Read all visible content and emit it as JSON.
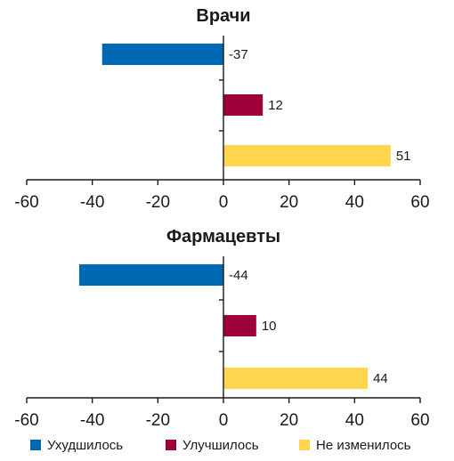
{
  "chart_data": [
    {
      "type": "bar",
      "orientation": "horizontal",
      "title": "Врачи",
      "categories": [
        "Ухудшилось",
        "Улучшилось",
        "Не изменилось"
      ],
      "values": [
        -37,
        12,
        51
      ],
      "value_labels": [
        "-37",
        "12",
        "51"
      ],
      "colors": [
        "#0069B4",
        "#9E0039",
        "#FFD64D"
      ],
      "xlim": [
        -60,
        60
      ],
      "xticks": [
        -60,
        -40,
        -20,
        0,
        20,
        40,
        60
      ],
      "xtick_labels": [
        "-60",
        "-40",
        "-20",
        "0",
        "20",
        "40",
        "60"
      ],
      "grid": false
    },
    {
      "type": "bar",
      "orientation": "horizontal",
      "title": "Фармацевты",
      "categories": [
        "Ухудшилось",
        "Улучшилось",
        "Не изменилось"
      ],
      "values": [
        -44,
        10,
        44
      ],
      "value_labels": [
        "-44",
        "10",
        "44"
      ],
      "colors": [
        "#0069B4",
        "#9E0039",
        "#FFD64D"
      ],
      "xlim": [
        -60,
        60
      ],
      "xticks": [
        -60,
        -40,
        -20,
        0,
        20,
        40,
        60
      ],
      "xtick_labels": [
        "-60",
        "-40",
        "-20",
        "0",
        "20",
        "40",
        "60"
      ],
      "grid": false
    }
  ],
  "legend": {
    "placement": "bottom",
    "items": [
      {
        "label": "Ухудшилось",
        "color": "#0069B4"
      },
      {
        "label": "Улучшилось",
        "color": "#9E0039"
      },
      {
        "label": "Не изменилось",
        "color": "#FFD64D"
      }
    ]
  }
}
